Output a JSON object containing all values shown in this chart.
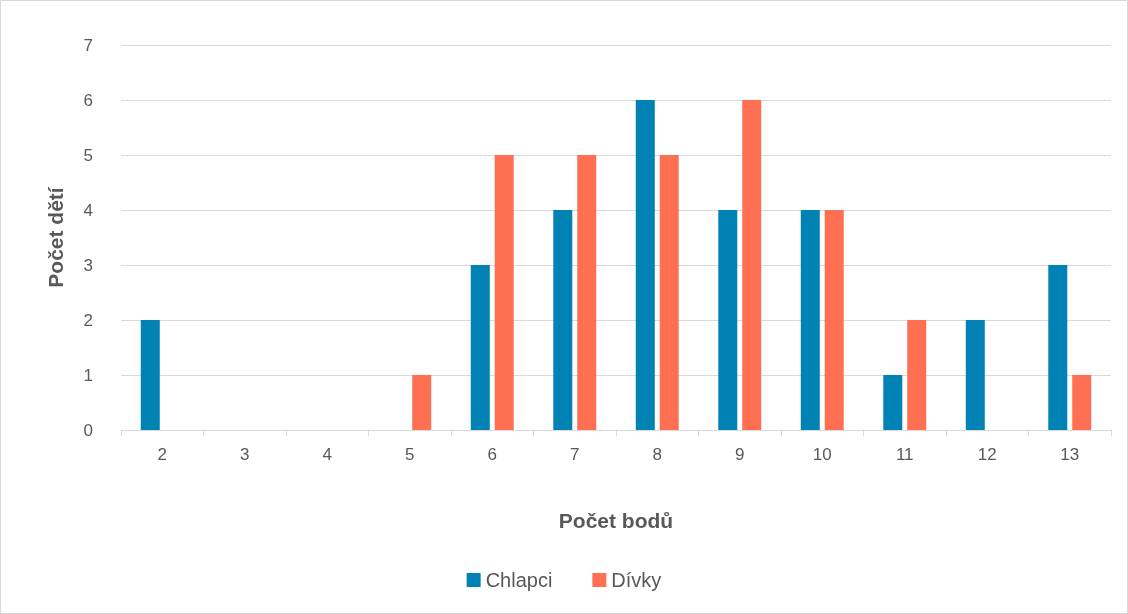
{
  "chart_data": {
    "type": "bar",
    "xlabel": "Počet bodů",
    "ylabel": "Počet dětí",
    "categories": [
      "2",
      "3",
      "4",
      "5",
      "6",
      "7",
      "8",
      "9",
      "10",
      "11",
      "12",
      "13"
    ],
    "series": [
      {
        "name": "Chlapci",
        "color": "#0083b4",
        "values": [
          2,
          0,
          0,
          0,
          3,
          4,
          6,
          4,
          4,
          1,
          2,
          3
        ]
      },
      {
        "name": "Dívky",
        "color": "#ff7053",
        "values": [
          0,
          0,
          0,
          1,
          5,
          5,
          5,
          6,
          4,
          2,
          0,
          1
        ]
      }
    ],
    "ylim": [
      0,
      7
    ],
    "yticks": [
      0,
      1,
      2,
      3,
      4,
      5,
      6,
      7
    ],
    "grid": "y",
    "legend": "bottom"
  }
}
